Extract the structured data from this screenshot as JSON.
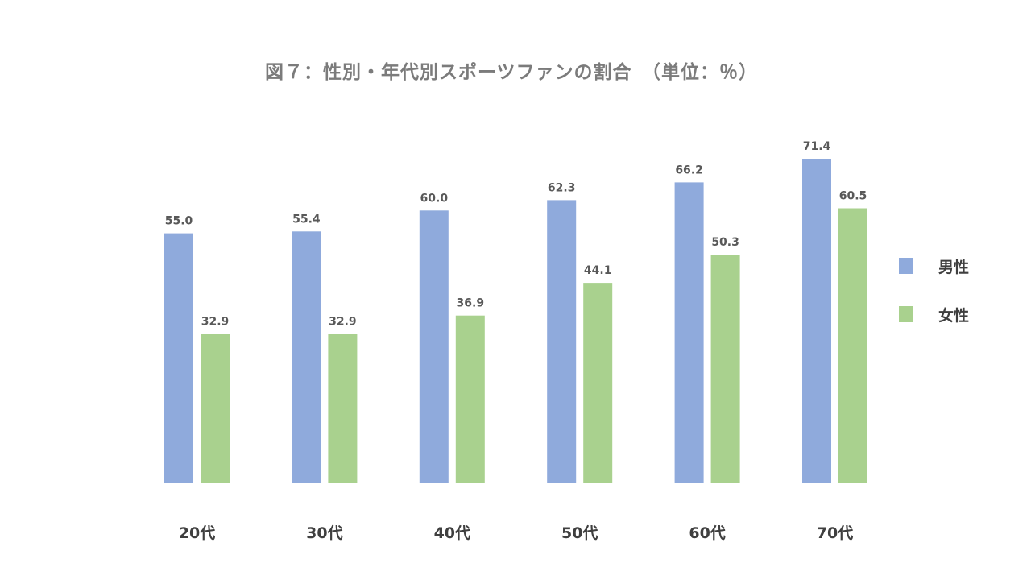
{
  "chart_data": {
    "type": "bar",
    "title": "図７：性別・年代別スポーツファンの割合　（単位：％）",
    "categories": [
      "20代",
      "30代",
      "40代",
      "50代",
      "60代",
      "70代"
    ],
    "series": [
      {
        "name": "男性",
        "color": "#8faadc",
        "values": [
          55.0,
          55.4,
          60.0,
          62.3,
          66.2,
          71.4
        ]
      },
      {
        "name": "女性",
        "color": "#a9d18e",
        "values": [
          32.9,
          32.9,
          36.9,
          44.1,
          50.3,
          60.5
        ]
      }
    ],
    "ylim": [
      0,
      71.4
    ],
    "grid": false,
    "legend_position": "right"
  }
}
